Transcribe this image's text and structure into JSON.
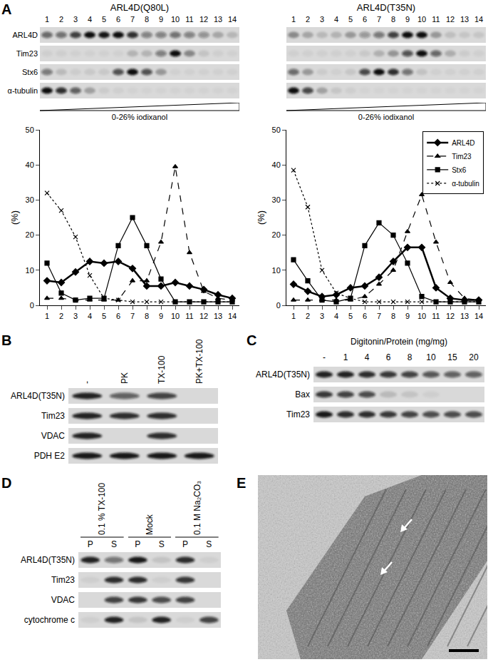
{
  "chart_data": [
    {
      "type": "line",
      "x": [
        1,
        2,
        3,
        4,
        5,
        6,
        7,
        8,
        9,
        10,
        11,
        12,
        13,
        14
      ],
      "xlim": [
        0.5,
        14.5
      ],
      "xticks": [
        1,
        2,
        3,
        4,
        5,
        6,
        7,
        8,
        9,
        10,
        11,
        12,
        13,
        14
      ],
      "ylim": [
        0,
        50
      ],
      "yticks": [
        0,
        10,
        20,
        30,
        40,
        50
      ],
      "y_label": "(%)",
      "series": [
        {
          "name": "ARL4D",
          "color": "#000000",
          "marker": "diamond",
          "line_style": "solid",
          "values": [
            7,
            6.5,
            9.5,
            12.5,
            12,
            12.5,
            10.5,
            5.5,
            5.5,
            6.5,
            5.5,
            4.5,
            3,
            2
          ]
        },
        {
          "name": "Tim23",
          "color": "#000000",
          "marker": "triangle",
          "line_style": "dashed",
          "values": [
            2,
            2,
            1.5,
            1.5,
            1.5,
            1.5,
            7,
            7,
            18,
            39.5,
            15,
            4,
            2,
            1.5
          ]
        },
        {
          "name": "Stx6",
          "color": "#000000",
          "marker": "square",
          "line_style": "solid",
          "values": [
            12,
            3.5,
            1.5,
            2,
            2,
            17,
            25,
            17,
            7.5,
            1,
            1,
            1,
            1,
            1
          ]
        },
        {
          "name": "α-tubulin",
          "color": "#000000",
          "marker": "x",
          "line_style": "dotted",
          "values": [
            32,
            27,
            19.5,
            8.5,
            2,
            1.5,
            1,
            1,
            1,
            1,
            1,
            1,
            1,
            1
          ]
        }
      ]
    },
    {
      "type": "line",
      "x": [
        1,
        2,
        3,
        4,
        5,
        6,
        7,
        8,
        9,
        10,
        11,
        12,
        13,
        14
      ],
      "xlim": [
        0.5,
        14.5
      ],
      "xticks": [
        1,
        2,
        3,
        4,
        5,
        6,
        7,
        8,
        9,
        10,
        11,
        12,
        13,
        14
      ],
      "ylim": [
        0,
        50
      ],
      "yticks": [
        0,
        10,
        20,
        30,
        40,
        50
      ],
      "y_label": "(%)",
      "legend": "upper right",
      "series": [
        {
          "name": "ARL4D",
          "color": "#000000",
          "marker": "diamond",
          "line_style": "solid",
          "values": [
            6,
            4,
            2.5,
            3,
            5,
            5.5,
            8,
            12.5,
            16.5,
            16.5,
            5,
            2,
            1.5,
            1.5
          ]
        },
        {
          "name": "Tim23",
          "color": "#000000",
          "marker": "triangle",
          "line_style": "dashed",
          "values": [
            1.5,
            1.5,
            1.5,
            1.5,
            1.5,
            2.5,
            6,
            10,
            21,
            31.5,
            18,
            6.5,
            2,
            1.5
          ]
        },
        {
          "name": "Stx6",
          "color": "#000000",
          "marker": "square",
          "line_style": "solid",
          "values": [
            13,
            7,
            1.5,
            1,
            2,
            17,
            23.5,
            20,
            12,
            2.5,
            1,
            1,
            1,
            1
          ]
        },
        {
          "name": "α-tubulin",
          "color": "#000000",
          "marker": "x",
          "line_style": "dotted",
          "values": [
            38.5,
            28,
            10,
            3.5,
            2,
            1,
            1,
            1,
            1,
            1,
            1,
            1,
            1,
            1
          ]
        }
      ]
    }
  ],
  "panels": {
    "A": {
      "label": "A",
      "blot_titles": [
        "ARL4D(Q80L)",
        "ARL4D(T35N)"
      ],
      "gradient": "0-26% iodixanol"
    },
    "B": {
      "label": "B",
      "columns": [
        "-",
        "PK",
        "TX-100",
        "PK+TX-100"
      ],
      "rows": [
        {
          "name": "ARL4D(T35N)",
          "band_intensity": [
            0.9,
            0.6,
            0.75,
            0
          ]
        },
        {
          "name": "Tim23",
          "band_intensity": [
            0.9,
            0.85,
            0.85,
            0
          ]
        },
        {
          "name": "VDAC",
          "band_intensity": [
            0.9,
            0,
            0.85,
            0
          ]
        },
        {
          "name": "PDH E2",
          "band_intensity": [
            0.95,
            0.95,
            0.95,
            0.95
          ]
        }
      ]
    },
    "C": {
      "label": "C",
      "header": "Digitonin/Protein (mg/mg)",
      "columns": [
        "-",
        "1",
        "4",
        "6",
        "8",
        "10",
        "15",
        "20"
      ],
      "rows": [
        {
          "name": "ARL4D(T35N)",
          "band_intensity": [
            0.9,
            0.9,
            0.85,
            0.8,
            0.75,
            0.65,
            0.6,
            0.6
          ]
        },
        {
          "name": "Bax",
          "band_intensity": [
            0.8,
            0.75,
            0.7,
            0.15,
            0.1,
            0.05,
            0,
            0
          ]
        },
        {
          "name": "Tim23",
          "band_intensity": [
            0.95,
            0.85,
            0.85,
            0.8,
            0.75,
            0.7,
            0.7,
            0.7
          ]
        }
      ]
    },
    "D": {
      "label": "D",
      "groups": [
        "0.1 % TX-100",
        "Mock",
        "0.1 M Na₂CO₃"
      ],
      "lanes": [
        "P",
        "S",
        "P",
        "S",
        "P",
        "S"
      ],
      "rows": [
        {
          "name": "ARL4D(T35N)",
          "band_intensity": [
            0.9,
            0.5,
            0.95,
            0.1,
            0.85,
            0.05
          ]
        },
        {
          "name": "Tim23",
          "band_intensity": [
            0.05,
            0.85,
            0.85,
            0.05,
            0.8,
            0
          ]
        },
        {
          "name": "VDAC",
          "band_intensity": [
            0,
            0.75,
            0.8,
            0.7,
            0.75,
            0
          ]
        },
        {
          "name": "cytochrome c",
          "band_intensity": [
            0.05,
            0.9,
            0.1,
            0.9,
            0.05,
            0.75
          ]
        }
      ]
    },
    "E": {
      "label": "E"
    }
  }
}
